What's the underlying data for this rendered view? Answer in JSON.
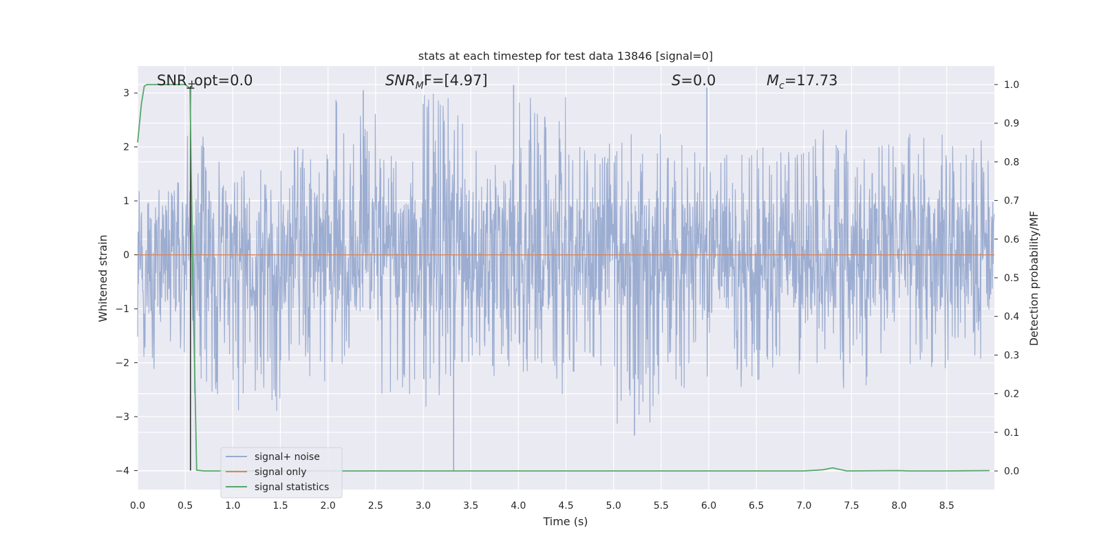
{
  "chart_data": {
    "type": "line",
    "title": "stats at each timestep for test data 13846 [signal=0]",
    "xlabel": "Time (s)",
    "ylabel": "Whitened strain",
    "ylabel_right": "Detection probability/MF",
    "xlim": [
      0.0,
      9.0
    ],
    "ylim": [
      -4.35,
      3.5
    ],
    "ylim_right": [
      -0.048,
      1.048
    ],
    "x_ticks": [
      "0.0",
      "0.5",
      "1.0",
      "1.5",
      "2.0",
      "2.5",
      "3.0",
      "3.5",
      "4.0",
      "4.5",
      "5.0",
      "5.5",
      "6.0",
      "6.5",
      "7.0",
      "7.5",
      "8.0",
      "8.5"
    ],
    "y_ticks": [
      "3",
      "2",
      "1",
      "0",
      "−1",
      "−2",
      "−3",
      "−4"
    ],
    "y_right_ticks": [
      "1.0",
      "0.9",
      "0.8",
      "0.7",
      "0.6",
      "0.5",
      "0.4",
      "0.3",
      "0.2",
      "0.1",
      "0.0"
    ],
    "grid": true,
    "legend_position": "lower-left",
    "annotations": {
      "snr_opt": "SNR_opt=0.0",
      "snr_mf_main": "SNR",
      "snr_mf_sub": "M",
      "snr_mf_rest": "F=[4.97]",
      "s_main": "S",
      "s_rest": "=0.0",
      "mc_main": "M",
      "mc_sub": "c",
      "mc_rest": "=17.73"
    },
    "marker": {
      "x": 0.555,
      "y_top": 3.13,
      "y_bottom": -4.0
    },
    "series": [
      {
        "name": "signal+ noise",
        "color": "#98AACF",
        "style": "noise",
        "x_range": [
          0.0,
          9.0
        ],
        "envelope_positive": [
          1.5,
          2.4,
          1.8,
          2.2,
          3.1,
          2.0,
          3.15,
          2.1,
          3.1,
          2.3,
          2.4,
          2.3,
          2.3,
          2.3,
          2.5,
          2.6,
          2.4,
          2.35
        ],
        "envelope_negative": [
          -2.3,
          -2.8,
          -3.05,
          -2.5,
          -2.35,
          -2.95,
          -3.05,
          -2.4,
          -2.9,
          -2.4,
          -3.35,
          -2.7,
          -2.6,
          -2.5,
          -2.7,
          -2.8,
          -2.4,
          -2.4
        ],
        "spikes": [
          {
            "x": 3.32,
            "y": -4.0
          },
          {
            "x": 5.22,
            "y": -3.35
          },
          {
            "x": 3.95,
            "y": 3.15
          },
          {
            "x": 2.37,
            "y": 3.05
          },
          {
            "x": 5.98,
            "y": 3.1
          }
        ]
      },
      {
        "name": "signal only",
        "color": "#DD8452",
        "x": [
          0.0,
          9.0
        ],
        "y": [
          0.0,
          0.0
        ]
      },
      {
        "name": "signal statistics",
        "color": "#55A868",
        "axis": "right",
        "x": [
          0.0,
          0.04,
          0.07,
          0.1,
          0.15,
          0.3,
          0.45,
          0.5,
          0.55,
          0.58,
          0.62,
          0.7,
          1.0,
          7.0,
          7.2,
          7.3,
          7.45,
          8.0,
          8.1,
          8.5,
          8.95
        ],
        "y": [
          0.85,
          0.95,
          0.996,
          1.0,
          1.0,
          1.0,
          1.0,
          1.0,
          0.99,
          0.5,
          0.002,
          0.0,
          0.0,
          0.0,
          0.003,
          0.008,
          0.0,
          0.001,
          0.0,
          0.0,
          0.001
        ]
      }
    ]
  }
}
